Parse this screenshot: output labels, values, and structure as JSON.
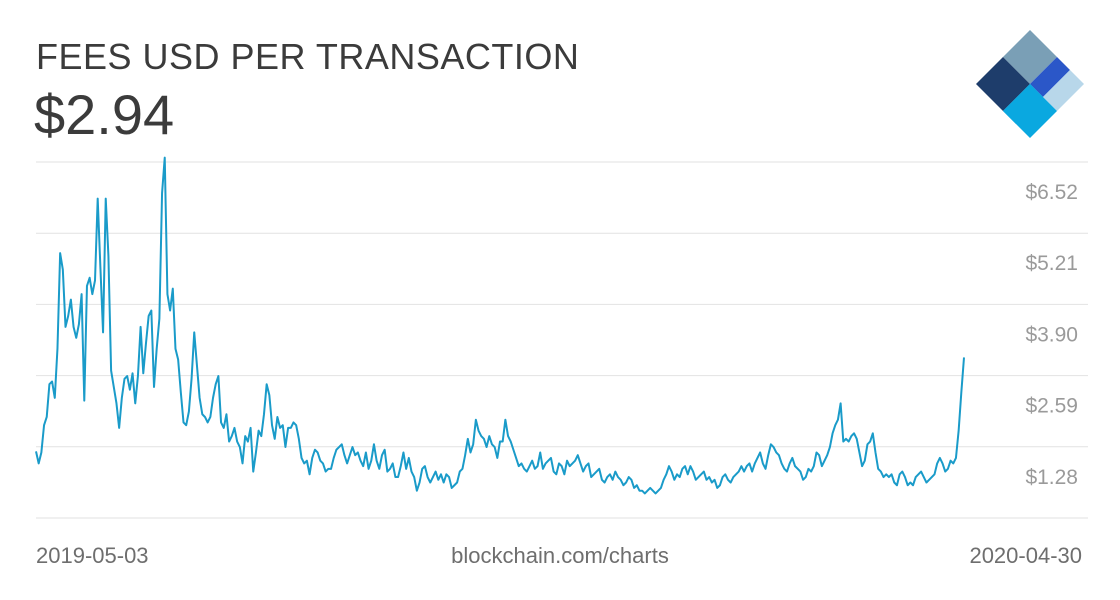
{
  "header": {
    "title": "FEES USD PER TRANSACTION",
    "current_value": "$2.94"
  },
  "footer": {
    "start_date": "2019-05-03",
    "source": "blockchain.com/charts",
    "end_date": "2020-04-30"
  },
  "logo": {
    "icon": "blockchain-diamond-logo-icon",
    "colors": [
      "#1e3d6b",
      "#7a9fb6",
      "#2b57c8",
      "#0aa8e0",
      "#b8d7ea"
    ]
  },
  "chart_data": {
    "type": "line",
    "title": "FEES USD PER TRANSACTION",
    "xlabel": "",
    "ylabel": "",
    "x_start": "2019-05-03",
    "x_end": "2020-04-30",
    "ylim": [
      0,
      6.52
    ],
    "y_ticks": [
      1.28,
      2.59,
      3.9,
      5.21,
      6.52
    ],
    "y_tick_labels": [
      "$1.28",
      "$2.59",
      "$3.90",
      "$5.21",
      "$6.52"
    ],
    "grid": true,
    "line_color": "#1a9bc9",
    "series": [
      {
        "values": [
          1.22,
          1.0,
          1.2,
          1.7,
          1.85,
          2.45,
          2.5,
          2.2,
          3.1,
          4.85,
          4.55,
          3.5,
          3.7,
          4.0,
          3.5,
          3.3,
          3.55,
          4.1,
          2.15,
          4.25,
          4.4,
          4.1,
          4.35,
          5.85,
          4.6,
          3.4,
          5.85,
          4.8,
          2.7,
          2.4,
          2.1,
          1.65,
          2.2,
          2.55,
          2.6,
          2.35,
          2.65,
          2.1,
          2.6,
          3.5,
          2.65,
          3.2,
          3.7,
          3.8,
          2.4,
          3.1,
          3.65,
          5.95,
          6.6,
          4.1,
          3.8,
          4.2,
          3.1,
          2.9,
          2.3,
          1.75,
          1.7,
          1.95,
          2.55,
          3.4,
          2.8,
          2.2,
          1.9,
          1.85,
          1.75,
          1.85,
          2.2,
          2.45,
          2.6,
          1.75,
          1.65,
          1.9,
          1.4,
          1.5,
          1.65,
          1.4,
          1.3,
          1.0,
          1.5,
          1.4,
          1.65,
          0.85,
          1.2,
          1.6,
          1.5,
          1.9,
          2.45,
          2.25,
          1.7,
          1.45,
          1.85,
          1.65,
          1.7,
          1.3,
          1.65,
          1.65,
          1.75,
          1.7,
          1.45,
          1.1,
          1.0,
          1.05,
          0.8,
          1.1,
          1.25,
          1.2,
          1.05,
          1.0,
          0.85,
          0.9,
          0.9,
          1.1,
          1.25,
          1.3,
          1.35,
          1.15,
          1.0,
          1.15,
          1.3,
          1.15,
          1.2,
          1.05,
          0.95,
          1.2,
          0.9,
          1.05,
          1.35,
          1.05,
          0.9,
          1.15,
          1.25,
          0.85,
          0.9,
          1.0,
          0.75,
          0.75,
          0.95,
          1.2,
          0.9,
          1.1,
          0.85,
          0.75,
          0.5,
          0.65,
          0.9,
          0.95,
          0.75,
          0.65,
          0.75,
          0.85,
          0.7,
          0.8,
          0.65,
          0.8,
          0.75,
          0.55,
          0.6,
          0.65,
          0.85,
          0.9,
          1.15,
          1.45,
          1.2,
          1.35,
          1.8,
          1.6,
          1.5,
          1.45,
          1.3,
          1.5,
          1.35,
          1.3,
          1.1,
          1.4,
          1.4,
          1.8,
          1.5,
          1.4,
          1.25,
          1.1,
          0.95,
          1.0,
          0.9,
          0.85,
          0.95,
          1.05,
          0.9,
          0.95,
          1.2,
          0.9,
          1.0,
          1.05,
          1.1,
          0.85,
          0.8,
          1.0,
          0.95,
          0.8,
          1.05,
          0.95,
          1.0,
          1.05,
          1.15,
          1.0,
          0.85,
          0.95,
          1.0,
          0.75,
          0.8,
          0.85,
          0.9,
          0.7,
          0.65,
          0.75,
          0.8,
          0.7,
          0.85,
          0.75,
          0.7,
          0.6,
          0.65,
          0.75,
          0.7,
          0.55,
          0.6,
          0.5,
          0.5,
          0.45,
          0.5,
          0.55,
          0.5,
          0.45,
          0.5,
          0.55,
          0.7,
          0.8,
          0.95,
          0.85,
          0.7,
          0.8,
          0.75,
          0.9,
          0.95,
          0.8,
          0.95,
          0.85,
          0.7,
          0.75,
          0.8,
          0.85,
          0.7,
          0.75,
          0.65,
          0.7,
          0.55,
          0.6,
          0.75,
          0.8,
          0.7,
          0.65,
          0.75,
          0.8,
          0.85,
          0.95,
          0.85,
          0.95,
          1.0,
          0.85,
          1.0,
          1.1,
          1.2,
          1.0,
          0.9,
          1.15,
          1.35,
          1.3,
          1.2,
          1.15,
          1.0,
          0.9,
          0.85,
          1.0,
          1.1,
          0.95,
          0.9,
          0.85,
          0.7,
          0.75,
          0.9,
          0.85,
          0.95,
          1.2,
          1.15,
          0.95,
          1.05,
          1.15,
          1.3,
          1.55,
          1.7,
          1.8,
          2.1,
          1.4,
          1.45,
          1.4,
          1.5,
          1.55,
          1.45,
          1.2,
          0.95,
          1.05,
          1.35,
          1.4,
          1.55,
          1.2,
          0.9,
          0.85,
          0.75,
          0.8,
          0.75,
          0.8,
          0.65,
          0.6,
          0.8,
          0.85,
          0.75,
          0.6,
          0.65,
          0.6,
          0.75,
          0.8,
          0.85,
          0.75,
          0.65,
          0.7,
          0.75,
          0.8,
          1.0,
          1.1,
          1.0,
          0.85,
          0.9,
          1.05,
          1.0,
          1.1,
          1.6,
          2.3,
          2.94
        ]
      }
    ]
  }
}
